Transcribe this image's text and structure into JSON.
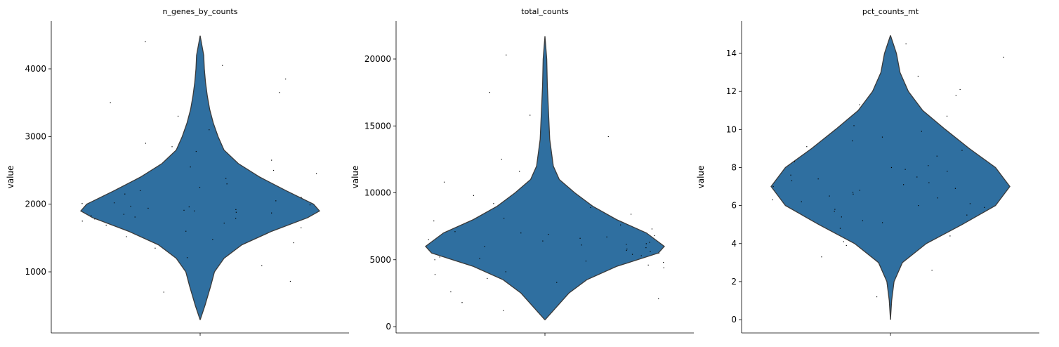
{
  "chart_data": [
    {
      "type": "violin",
      "title": "n_genes_by_counts",
      "ylabel": "value",
      "color": "#2f6fa0",
      "ylim": [
        97,
        4706
      ],
      "yticks": [
        1000,
        2000,
        3000,
        4000
      ],
      "violin": {
        "y": [
          290,
          500,
          800,
          1000,
          1200,
          1400,
          1600,
          1800,
          1900,
          2000,
          2200,
          2400,
          2600,
          2800,
          3000,
          3200,
          3400,
          3600,
          3800,
          4000,
          4200,
          4490
        ],
        "width": [
          0,
          0.04,
          0.09,
          0.12,
          0.2,
          0.35,
          0.6,
          0.9,
          1.0,
          0.95,
          0.72,
          0.5,
          0.32,
          0.2,
          0.15,
          0.11,
          0.08,
          0.06,
          0.045,
          0.035,
          0.03,
          0
        ]
      },
      "points": [
        1850,
        1920,
        2010,
        1780,
        1650,
        2300,
        2550,
        1480,
        1990,
        2100,
        3100,
        1900,
        1720,
        2780,
        4050,
        1350,
        2200,
        1830,
        860,
        3500,
        1960,
        2450,
        1600,
        1870,
        2900,
        1210,
        2050,
        1940,
        3850,
        1750,
        2650,
        1520,
        2150,
        4400,
        1880,
        700,
        2380,
        3300,
        1810,
        2020,
        1690,
        2500,
        1430,
        3650,
        1970,
        1090,
        2250,
        1790,
        2850,
        1910
      ]
    },
    {
      "type": "violin",
      "title": "total_counts",
      "ylabel": "value",
      "color": "#2f6fa0",
      "ylim": [
        -472,
        22835
      ],
      "yticks": [
        0,
        5000,
        10000,
        15000,
        20000
      ],
      "violin": {
        "y": [
          500,
          1500,
          2500,
          3500,
          4500,
          5500,
          6000,
          7000,
          8000,
          9000,
          10000,
          11000,
          12000,
          14000,
          16000,
          18000,
          20000,
          21700
        ],
        "width": [
          0,
          0.1,
          0.2,
          0.35,
          0.6,
          0.95,
          1.0,
          0.85,
          0.6,
          0.4,
          0.25,
          0.12,
          0.07,
          0.04,
          0.03,
          0.02,
          0.015,
          0
        ]
      },
      "points": [
        5800,
        6200,
        5400,
        7100,
        4800,
        6600,
        9200,
        3900,
        5900,
        6800,
        12500,
        5100,
        7600,
        2600,
        6100,
        8400,
        4400,
        5600,
        17500,
        6300,
        1800,
        7900,
        5300,
        10800,
        6000,
        4100,
        7300,
        5700,
        14200,
        3300,
        6500,
        8900,
        5000,
        20300,
        6900,
        2100,
        5500,
        11600,
        4600,
        7000,
        6400,
        9800,
        3600,
        5200,
        15800,
        6700,
        4900,
        8100,
        1200,
        6150
      ]
    },
    {
      "type": "violin",
      "title": "pct_counts_mt",
      "ylabel": "value",
      "color": "#2f6fa0",
      "ylim": [
        -0.7,
        15.7
      ],
      "yticks": [
        0,
        2,
        4,
        6,
        8,
        10,
        12,
        14
      ],
      "violin": {
        "y": [
          0,
          1,
          2,
          3,
          4,
          5,
          6,
          7,
          8,
          9,
          10,
          11,
          12,
          13,
          14,
          14.95
        ],
        "width": [
          0,
          0.01,
          0.03,
          0.1,
          0.3,
          0.6,
          0.88,
          1.0,
          0.88,
          0.66,
          0.46,
          0.27,
          0.15,
          0.08,
          0.05,
          0
        ]
      },
      "points": [
        6.8,
        7.2,
        5.9,
        8.1,
        6.3,
        9.4,
        4.8,
        7.6,
        10.7,
        5.4,
        6.9,
        12.1,
        7.9,
        3.9,
        6.1,
        8.6,
        5.1,
        7.3,
        13.8,
        6.5,
        9.9,
        4.4,
        7.0,
        11.3,
        5.7,
        8.3,
        2.6,
        6.6,
        9.1,
        7.8,
        14.5,
        5.2,
        6.0,
        10.2,
        3.3,
        7.4,
        8.9,
        6.2,
        12.8,
        4.1,
        7.1,
        5.5,
        9.6,
        6.7,
        1.2,
        8.0,
        11.8,
        5.8,
        7.5,
        6.4
      ]
    }
  ]
}
